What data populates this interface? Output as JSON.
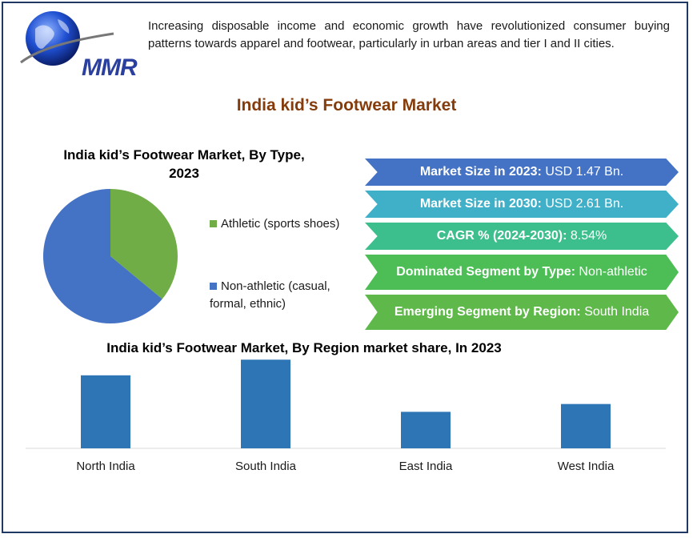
{
  "logo": {
    "text": "MMR"
  },
  "intro": "Increasing disposable income and economic growth have revolutionized consumer buying patterns towards apparel and footwear, particularly in urban areas and tier I and II cities.",
  "main_title": "India kid’s Footwear Market",
  "pie_title": "India kid’s Footwear Market, By Type, 2023",
  "ribbons": [
    {
      "label": "Market Size in 2023:",
      "value": " USD 1.47 Bn.",
      "color": "#4472c4"
    },
    {
      "label": "Market Size in 2030:",
      "value": " USD 2.61 Bn.",
      "color": "#3fb0c8"
    },
    {
      "label": "CAGR % (2024-2030):",
      "value": " 8.54%",
      "color": "#3cbf8c"
    },
    {
      "label": "Dominated Segment by Type:",
      "value": "  Non-athletic",
      "color": "#4cbe55"
    },
    {
      "label": "Emerging Segment by Region:",
      "value": " South India",
      "color": "#5fb94a"
    }
  ],
  "bar_title": "India kid’s Footwear Market, By Region market share, In 2023",
  "chart_data": [
    {
      "type": "pie",
      "title": "India kid’s Footwear Market, By Type, 2023",
      "legend_position": "right",
      "slices": [
        {
          "label": "Athletic (sports shoes)",
          "value": 36,
          "color": "#70ad47"
        },
        {
          "label": "Non-athletic (casual, formal, ethnic)",
          "value": 64,
          "color": "#4472c4"
        }
      ]
    },
    {
      "type": "bar",
      "title": "India kid’s Footwear Market, By Region market share, In 2023",
      "categories": [
        "North India",
        "South India",
        "East India",
        "West India"
      ],
      "values": [
        28,
        34,
        14,
        17
      ],
      "ylim": [
        0,
        35
      ],
      "color": "#2e75b6",
      "grid": false
    }
  ]
}
